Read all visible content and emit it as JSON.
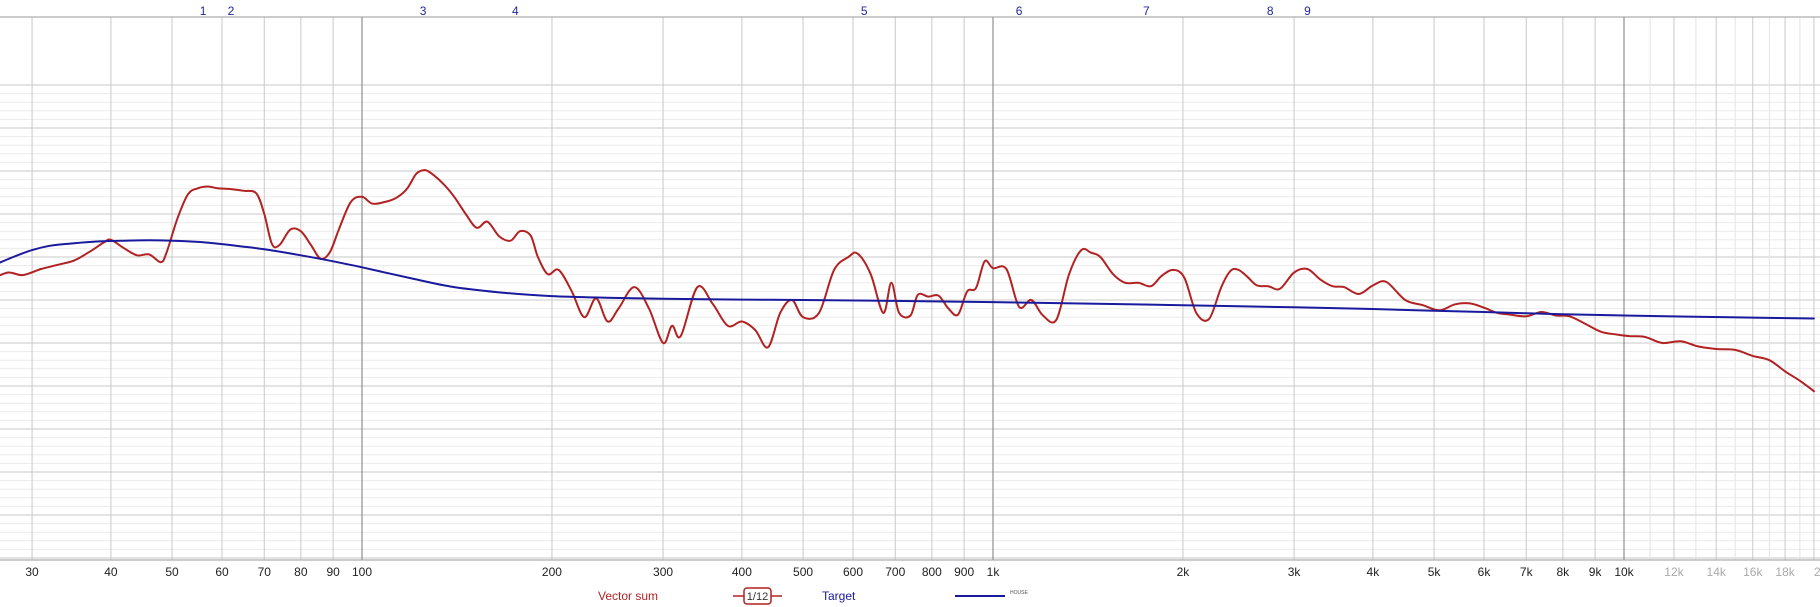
{
  "chart_data": {
    "type": "line",
    "title": "",
    "xlabel": "",
    "ylabel": "",
    "xscale": "log",
    "xlim": [
      26,
      20000
    ],
    "ylim": [
      -30,
      25
    ],
    "grid": true,
    "legend_position": "bottom-center",
    "x_tick_labels": [
      {
        "value": 30,
        "label": "30",
        "style": "major"
      },
      {
        "value": 40,
        "label": "40",
        "style": "major"
      },
      {
        "value": 50,
        "label": "50",
        "style": "major"
      },
      {
        "value": 60,
        "label": "60",
        "style": "major"
      },
      {
        "value": 70,
        "label": "70",
        "style": "major"
      },
      {
        "value": 80,
        "label": "80",
        "style": "major"
      },
      {
        "value": 90,
        "label": "90",
        "style": "major"
      },
      {
        "value": 100,
        "label": "100",
        "style": "major"
      },
      {
        "value": 200,
        "label": "200",
        "style": "major"
      },
      {
        "value": 300,
        "label": "300",
        "style": "major"
      },
      {
        "value": 400,
        "label": "400",
        "style": "major"
      },
      {
        "value": 500,
        "label": "500",
        "style": "major"
      },
      {
        "value": 600,
        "label": "600",
        "style": "major"
      },
      {
        "value": 700,
        "label": "700",
        "style": "major"
      },
      {
        "value": 800,
        "label": "800",
        "style": "major"
      },
      {
        "value": 900,
        "label": "900",
        "style": "major"
      },
      {
        "value": 1000,
        "label": "1k",
        "style": "major"
      },
      {
        "value": 2000,
        "label": "2k",
        "style": "major"
      },
      {
        "value": 3000,
        "label": "3k",
        "style": "major"
      },
      {
        "value": 4000,
        "label": "4k",
        "style": "major"
      },
      {
        "value": 5000,
        "label": "5k",
        "style": "major"
      },
      {
        "value": 6000,
        "label": "6k",
        "style": "major"
      },
      {
        "value": 7000,
        "label": "7k",
        "style": "major"
      },
      {
        "value": 8000,
        "label": "8k",
        "style": "major"
      },
      {
        "value": 9000,
        "label": "9k",
        "style": "major"
      },
      {
        "value": 10000,
        "label": "10k",
        "style": "major"
      },
      {
        "value": 12000,
        "label": "12k",
        "style": "minor"
      },
      {
        "value": 14000,
        "label": "14k",
        "style": "minor"
      },
      {
        "value": 16000,
        "label": "16k",
        "style": "minor"
      },
      {
        "value": 18000,
        "label": "18k",
        "style": "minor"
      },
      {
        "value": 20000,
        "label": "20k",
        "style": "minor"
      }
    ],
    "markers": [
      {
        "label": "1",
        "freq": 56
      },
      {
        "label": "2",
        "freq": 62
      },
      {
        "label": "3",
        "freq": 125
      },
      {
        "label": "4",
        "freq": 175
      },
      {
        "label": "5",
        "freq": 625
      },
      {
        "label": "6",
        "freq": 1100
      },
      {
        "label": "7",
        "freq": 1750
      },
      {
        "label": "8",
        "freq": 2750
      },
      {
        "label": "9",
        "freq": 3150
      }
    ],
    "series": [
      {
        "name": "Vector sum",
        "color": "#b22222",
        "x": [
          26,
          27.5,
          29,
          31,
          33,
          35,
          37,
          39,
          40,
          42,
          44,
          46,
          48,
          49,
          51,
          53,
          55,
          57,
          59,
          62,
          65,
          68,
          70,
          72,
          74,
          77,
          80,
          83,
          86,
          89,
          92,
          96,
          100,
          104,
          110,
          114,
          118,
          122,
          126,
          130,
          135,
          140,
          146,
          152,
          158,
          165,
          172,
          178,
          185,
          190,
          197,
          205,
          215,
          225,
          235,
          245,
          255,
          270,
          285,
          300,
          310,
          320,
          340,
          360,
          380,
          400,
          420,
          440,
          460,
          480,
          500,
          530,
          560,
          590,
          610,
          640,
          670,
          690,
          710,
          740,
          760,
          790,
          820,
          850,
          880,
          910,
          940,
          970,
          1000,
          1050,
          1100,
          1150,
          1200,
          1260,
          1320,
          1380,
          1430,
          1480,
          1550,
          1620,
          1700,
          1780,
          1850,
          1930,
          2010,
          2100,
          2200,
          2300,
          2380,
          2450,
          2530,
          2620,
          2730,
          2850,
          3000,
          3150,
          3300,
          3450,
          3600,
          3800,
          4000,
          4200,
          4500,
          4800,
          5100,
          5400,
          5700,
          6000,
          6300,
          6600,
          7000,
          7400,
          7800,
          8200,
          8700,
          9200,
          9700,
          10200,
          10800,
          11500,
          12300,
          13100,
          14000,
          15000,
          16000,
          17000,
          18000,
          19000,
          20000
        ],
        "y": [
          2.5,
          3.2,
          2.9,
          3.6,
          4.1,
          4.6,
          5.6,
          6.7,
          7.0,
          6.0,
          5.2,
          5.3,
          4.4,
          5.5,
          9.5,
          12.3,
          13.0,
          13.2,
          13.0,
          12.9,
          12.7,
          12.4,
          10.0,
          6.5,
          6.4,
          8.2,
          8.0,
          6.4,
          4.8,
          5.6,
          8.3,
          11.4,
          12.0,
          11.2,
          11.5,
          12.0,
          13.0,
          14.7,
          15.1,
          14.5,
          13.4,
          12.0,
          10.0,
          8.4,
          9.1,
          7.4,
          6.9,
          8.0,
          7.5,
          5.0,
          3.0,
          3.5,
          1.0,
          -2.0,
          0.2,
          -2.5,
          -1.0,
          1.5,
          -1.0,
          -5.0,
          -3.0,
          -4.2,
          1.5,
          -0.5,
          -3.0,
          -2.5,
          -3.5,
          -5.5,
          -1.5,
          0.0,
          -2.0,
          -1.5,
          3.5,
          5.0,
          5.4,
          3.0,
          -1.5,
          2.0,
          -1.5,
          -1.8,
          0.6,
          0.4,
          0.5,
          -1.0,
          -1.7,
          1.0,
          1.4,
          4.5,
          3.7,
          3.6,
          -0.8,
          0.0,
          -1.8,
          -2.3,
          3.0,
          5.8,
          5.5,
          5.0,
          3.0,
          2.0,
          2.0,
          1.6,
          2.8,
          3.5,
          2.6,
          -1.5,
          -2.2,
          1.5,
          3.4,
          3.5,
          2.7,
          1.7,
          1.6,
          1.3,
          3.2,
          3.6,
          2.4,
          1.6,
          1.5,
          0.7,
          1.7,
          2.1,
          0.0,
          -0.6,
          -1.2,
          -0.5,
          -0.4,
          -0.9,
          -1.5,
          -1.7,
          -1.9,
          -1.4,
          -1.8,
          -1.9,
          -2.8,
          -3.7,
          -4.0,
          -4.2,
          -4.3,
          -5.0,
          -4.8,
          -5.4,
          -5.7,
          -5.8,
          -6.5,
          -7.0,
          -8.3,
          -9.4,
          -10.6
        ]
      },
      {
        "name": "Target",
        "color": "#1a1a9e",
        "x": [
          26,
          28,
          30,
          32,
          35,
          38,
          42,
          46,
          50,
          55,
          60,
          65,
          70,
          80,
          90,
          100,
          120,
          140,
          170,
          200,
          250,
          300,
          400,
          500,
          700,
          1000,
          1500,
          2000,
          3000,
          4000,
          5000,
          6000,
          7000,
          8000,
          10000,
          13000,
          16000,
          20000
        ],
        "y": [
          4.0,
          5.0,
          5.8,
          6.3,
          6.6,
          6.8,
          6.9,
          6.95,
          6.9,
          6.75,
          6.5,
          6.2,
          5.9,
          5.2,
          4.5,
          3.8,
          2.5,
          1.5,
          0.8,
          0.45,
          0.25,
          0.15,
          0.05,
          0.0,
          -0.1,
          -0.25,
          -0.45,
          -0.6,
          -0.85,
          -1.05,
          -1.25,
          -1.4,
          -1.55,
          -1.65,
          -1.8,
          -1.95,
          -2.05,
          -2.15
        ]
      }
    ]
  },
  "legend": {
    "vector_sum_label": "Vector sum",
    "smoothing_label": "1/12",
    "target_label": "Target",
    "house_label": "HOUSE"
  }
}
